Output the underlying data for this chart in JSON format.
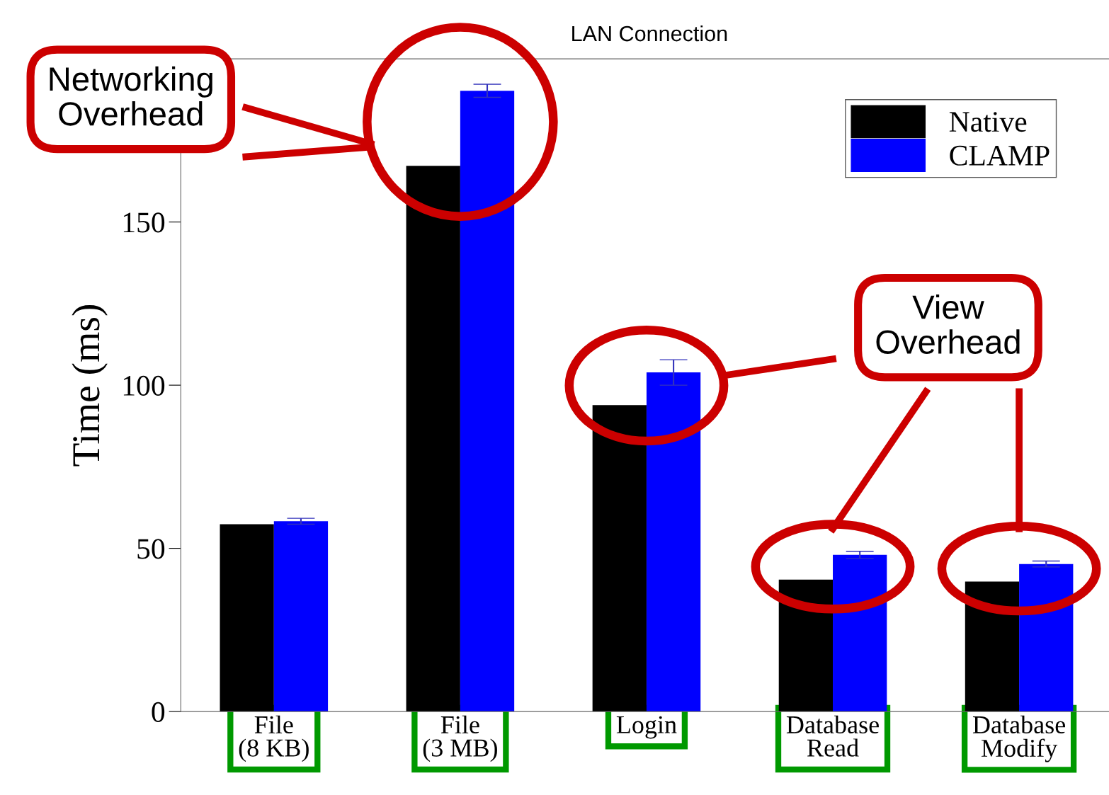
{
  "chart_data": {
    "type": "bar",
    "title": "LAN Connection",
    "ylabel": "Time (ms)",
    "categories": [
      "File\n(8 KB)",
      "File\n(3 MB)",
      "Login",
      "Database\nRead",
      "Database\nModify"
    ],
    "series": [
      {
        "name": "Native",
        "color": "#000000",
        "values": [
          57.4,
          167.2,
          93.9,
          40.4,
          39.8
        ]
      },
      {
        "name": "CLAMP",
        "color": "#0000ff",
        "values": [
          58.3,
          190.2,
          103.9,
          48.0,
          45.2
        ],
        "errors": [
          0.9,
          2,
          3.9,
          1.1,
          0.9
        ]
      }
    ],
    "ylim": [
      0,
      200
    ],
    "yticks": [
      0,
      50,
      100,
      150
    ],
    "legend": "top right",
    "grid": false,
    "annotations": [
      "Networking\nOverhead",
      "View\nOverhead"
    ]
  }
}
